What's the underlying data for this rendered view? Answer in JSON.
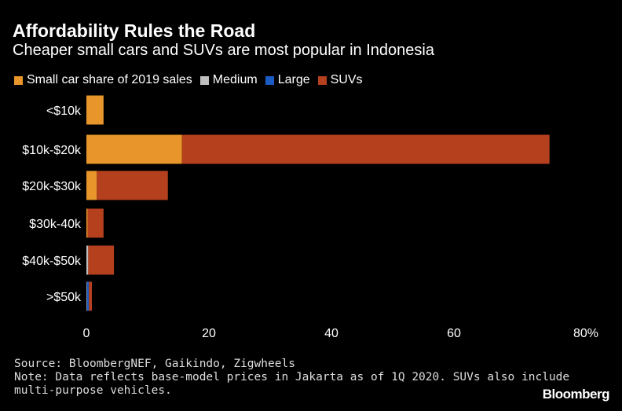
{
  "title": "Affordability Rules the Road",
  "subtitle": "Cheaper small cars and SUVs are most popular in Indonesia",
  "chart_data": {
    "type": "bar",
    "orientation": "horizontal",
    "stacked": true,
    "categories": [
      "<$10k",
      "$10k-$20k",
      "$20k-$30k",
      "$30k-40k",
      "$40k-$50k",
      ">$50k"
    ],
    "series": [
      {
        "name": "Small car share of 2019 sales",
        "color": "#e8962b",
        "values": [
          2.8,
          15.6,
          1.7,
          0.2,
          0,
          0
        ]
      },
      {
        "name": "Medium",
        "color": "#bfbfbf",
        "values": [
          0,
          0,
          0,
          0,
          0.3,
          0.1
        ]
      },
      {
        "name": "Large",
        "color": "#1a5bc4",
        "values": [
          0,
          0,
          0,
          0,
          0,
          0.3
        ]
      },
      {
        "name": "SUVs",
        "color": "#b5401e",
        "values": [
          0,
          60.0,
          11.6,
          2.6,
          4.2,
          0.5
        ]
      }
    ],
    "xlim": [
      0,
      80
    ],
    "xticks": [
      "0",
      "20",
      "40",
      "60",
      "80%"
    ],
    "xtick_values": [
      0,
      20,
      40,
      60,
      80
    ],
    "legend_placement": "top-left",
    "grid": false
  },
  "footer": {
    "source": "Source: BloombergNEF, Gaikindo, Zigwheels",
    "note_line1": "Note: Data reflects base-model prices in Jakarta as of 1Q 2020. SUVs also include",
    "note_line2": "multi-purpose vehicles.",
    "logo": "Bloomberg"
  }
}
